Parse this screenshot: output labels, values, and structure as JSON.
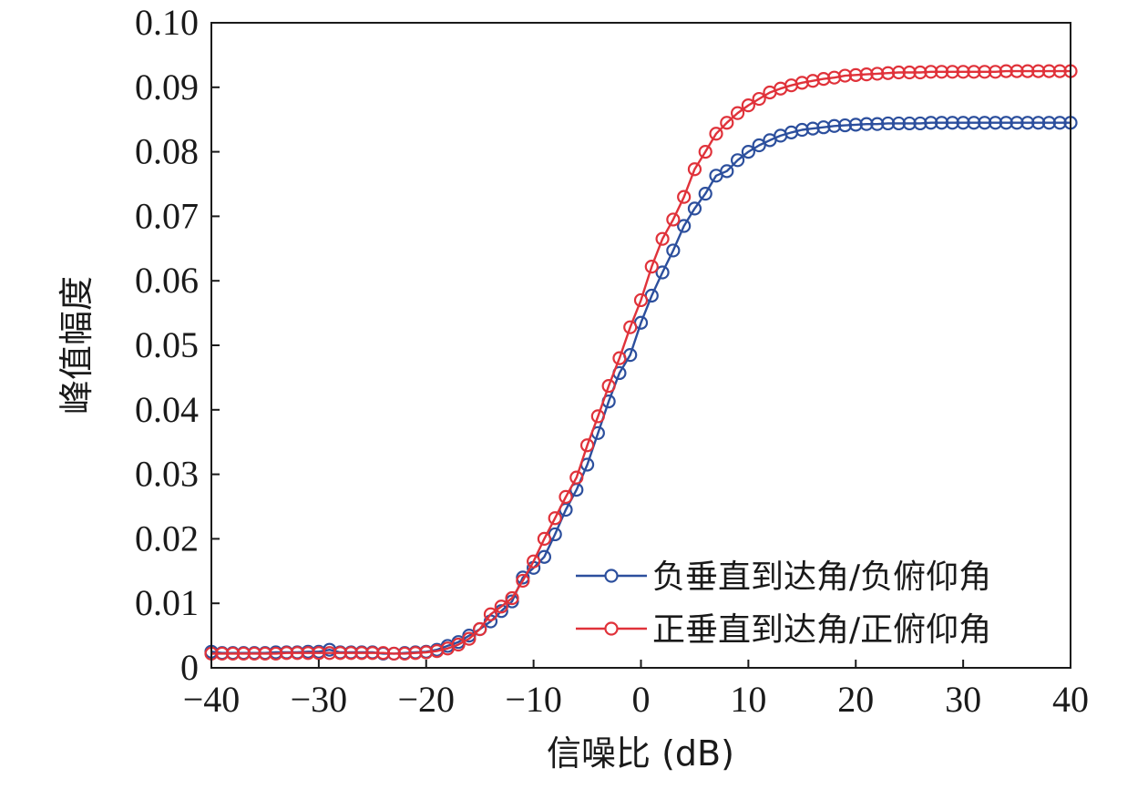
{
  "chart_data": {
    "type": "line",
    "xlabel": "信噪比 (dB)",
    "ylabel": "峰值幅度",
    "xlim": [
      -40,
      40
    ],
    "ylim": [
      0,
      0.1
    ],
    "x_ticks": [
      -40,
      -30,
      -20,
      -10,
      0,
      10,
      20,
      30,
      40
    ],
    "x_tick_labels": [
      "−40",
      "−30",
      "−20",
      "−10",
      "0",
      "10",
      "20",
      "30",
      "40"
    ],
    "y_ticks": [
      0,
      0.01,
      0.02,
      0.03,
      0.04,
      0.05,
      0.06,
      0.07,
      0.08,
      0.09,
      0.1
    ],
    "y_tick_labels": [
      "0",
      "0.01",
      "0.02",
      "0.03",
      "0.04",
      "0.05",
      "0.06",
      "0.07",
      "0.08",
      "0.09",
      "0.10"
    ],
    "grid": false,
    "legend_position": "bottom-right",
    "marker": "circle",
    "x": [
      -40,
      -39,
      -38,
      -37,
      -36,
      -35,
      -34,
      -33,
      -32,
      -31,
      -30,
      -29,
      -28,
      -27,
      -26,
      -25,
      -24,
      -23,
      -22,
      -21,
      -20,
      -19,
      -18,
      -17,
      -16,
      -15,
      -14,
      -13,
      -12,
      -11,
      -10,
      -9,
      -8,
      -7,
      -6,
      -5,
      -4,
      -3,
      -2,
      -1,
      0,
      1,
      2,
      3,
      4,
      5,
      6,
      7,
      8,
      9,
      10,
      11,
      12,
      13,
      14,
      15,
      16,
      17,
      18,
      19,
      20,
      21,
      22,
      23,
      24,
      25,
      26,
      27,
      28,
      29,
      30,
      31,
      32,
      33,
      34,
      35,
      36,
      37,
      38,
      39,
      40
    ],
    "series": [
      {
        "name": "负垂直到达角/负俯仰角",
        "color": "#2c4f9d",
        "values": [
          0.0025,
          0.0023,
          0.0023,
          0.0023,
          0.0023,
          0.0023,
          0.0024,
          0.0024,
          0.0024,
          0.0025,
          0.0025,
          0.0028,
          0.0024,
          0.0024,
          0.0024,
          0.0024,
          0.0022,
          0.0022,
          0.0023,
          0.0024,
          0.0025,
          0.0028,
          0.0034,
          0.004,
          0.005,
          0.006,
          0.0072,
          0.0088,
          0.0103,
          0.014,
          0.0155,
          0.0172,
          0.0207,
          0.0245,
          0.0276,
          0.0315,
          0.0364,
          0.0413,
          0.0457,
          0.0485,
          0.0535,
          0.0577,
          0.0613,
          0.0647,
          0.0685,
          0.0712,
          0.0735,
          0.0763,
          0.077,
          0.0787,
          0.08,
          0.081,
          0.0818,
          0.0825,
          0.083,
          0.0834,
          0.0836,
          0.0838,
          0.084,
          0.0841,
          0.0842,
          0.0843,
          0.0843,
          0.0844,
          0.0844,
          0.0844,
          0.0844,
          0.0845,
          0.0845,
          0.0845,
          0.0845,
          0.0845,
          0.0845,
          0.0845,
          0.0845,
          0.0845,
          0.0845,
          0.0845,
          0.0845,
          0.0845,
          0.0845
        ]
      },
      {
        "name": "正垂直到达角/正俯仰角",
        "color": "#e0323a",
        "values": [
          0.0022,
          0.0022,
          0.0022,
          0.0022,
          0.0022,
          0.0022,
          0.0022,
          0.0023,
          0.0023,
          0.0023,
          0.0023,
          0.0023,
          0.0023,
          0.0023,
          0.0023,
          0.0023,
          0.0023,
          0.0022,
          0.0022,
          0.0023,
          0.0024,
          0.0026,
          0.003,
          0.0036,
          0.0045,
          0.006,
          0.0083,
          0.0095,
          0.0108,
          0.0135,
          0.0165,
          0.02,
          0.0232,
          0.0265,
          0.0295,
          0.0345,
          0.039,
          0.0437,
          0.048,
          0.0528,
          0.057,
          0.0622,
          0.0665,
          0.0695,
          0.073,
          0.0773,
          0.08,
          0.0828,
          0.0845,
          0.086,
          0.0872,
          0.0882,
          0.0892,
          0.0898,
          0.0903,
          0.0907,
          0.091,
          0.0913,
          0.0915,
          0.0918,
          0.0919,
          0.092,
          0.0921,
          0.0922,
          0.0923,
          0.0923,
          0.0923,
          0.0924,
          0.0924,
          0.0924,
          0.0924,
          0.0924,
          0.0924,
          0.0924,
          0.0925,
          0.0925,
          0.0925,
          0.0925,
          0.0925,
          0.0925,
          0.0925
        ]
      }
    ]
  }
}
